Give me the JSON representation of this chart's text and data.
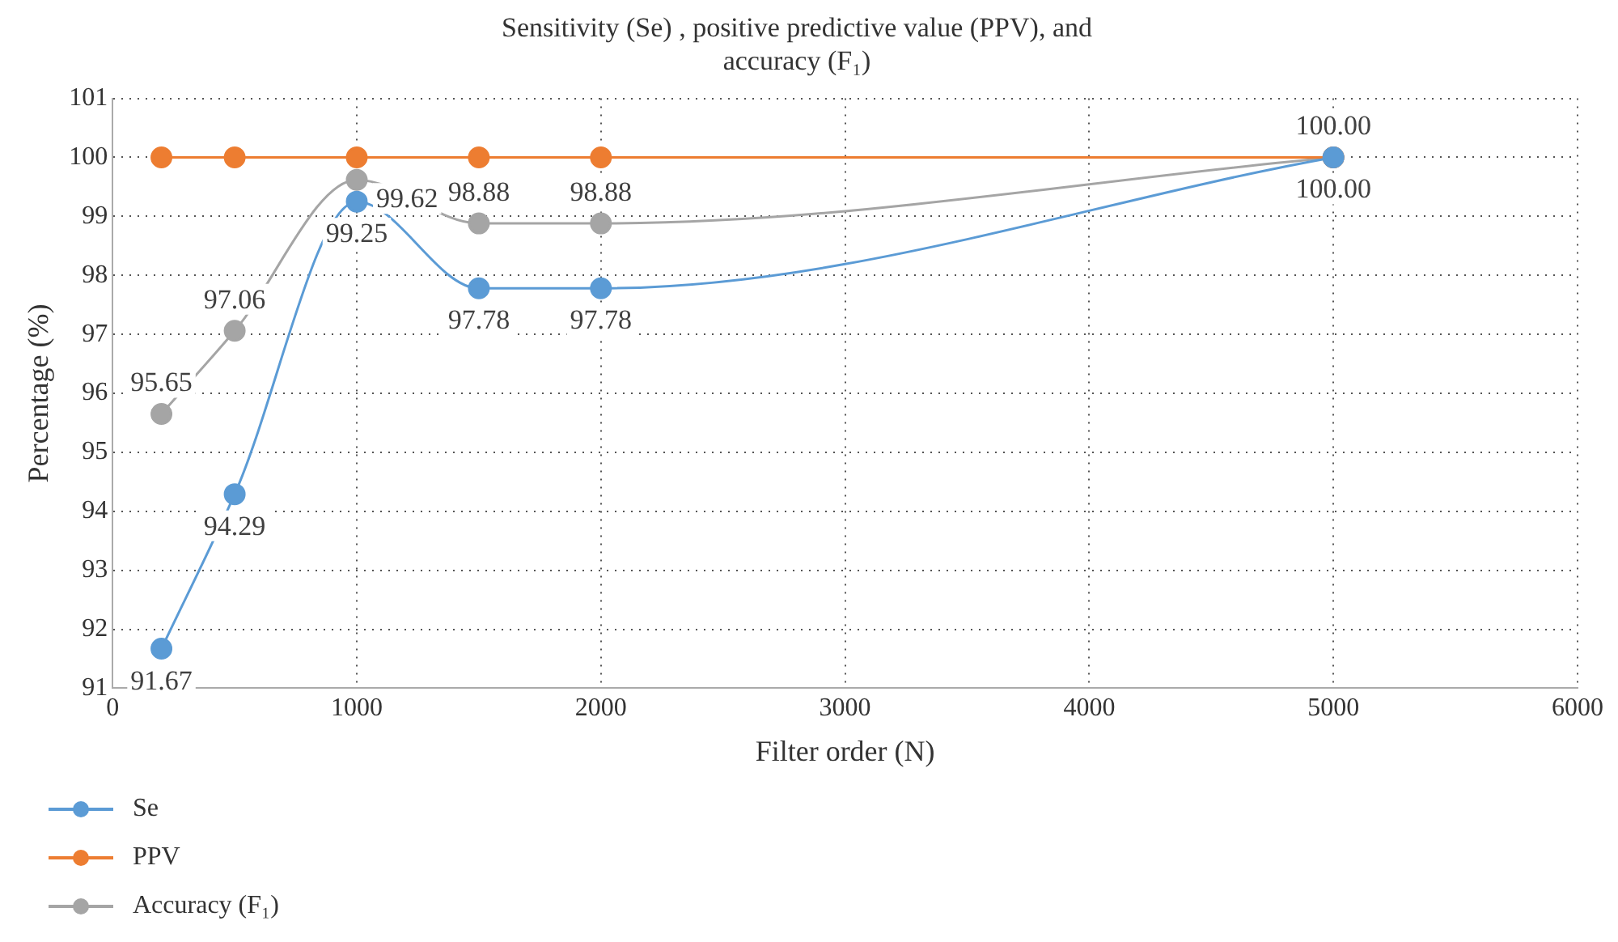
{
  "chart_data": {
    "type": "line",
    "title": "Sensitivity (Se) , positive predictive value (PPV), and accuracy (F₁)",
    "xlabel": "Filter order (N)",
    "ylabel": "Percentage (%)",
    "x": [
      200,
      500,
      1000,
      1500,
      2000,
      5000
    ],
    "series": [
      {
        "name": "Se",
        "color": "#5b9bd5",
        "values": [
          91.67,
          94.29,
          99.25,
          97.78,
          97.78,
          100.0
        ],
        "value_labels": [
          "91.67",
          "94.29",
          "99.25",
          "97.78",
          "97.78",
          "100.00"
        ]
      },
      {
        "name": "PPV",
        "color": "#ed7d31",
        "values": [
          100,
          100,
          100,
          100,
          100,
          100
        ]
      },
      {
        "name": "Accuracy (F₁)",
        "color": "#a5a5a5",
        "values": [
          95.65,
          97.06,
          99.62,
          98.88,
          98.88,
          100.0
        ],
        "value_labels": [
          "95.65",
          "97.06",
          "99.62",
          "98.88",
          "98.88",
          "100.00"
        ]
      }
    ],
    "xlim": [
      0,
      6000
    ],
    "xticks": [
      0,
      1000,
      2000,
      3000,
      4000,
      5000,
      6000
    ],
    "ylim": [
      91,
      101
    ],
    "yticks": [
      91,
      92,
      93,
      94,
      95,
      96,
      97,
      98,
      99,
      100,
      101
    ],
    "grid": true,
    "legend": "bottom left",
    "marker": "circle",
    "line_style": "solid"
  }
}
